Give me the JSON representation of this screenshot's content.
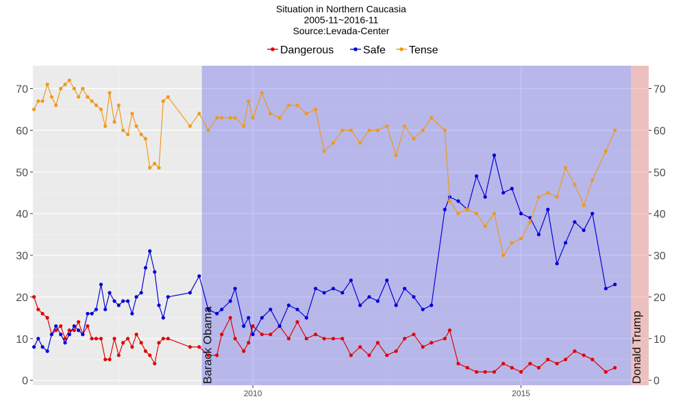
{
  "chart_data": {
    "type": "line",
    "title": "Situation in Northern Caucasia",
    "subtitle": "2005-11~2016-11",
    "source": "Source:Levada-Center",
    "xlabel": "",
    "ylabel": "",
    "legend_position": "top",
    "grid": true,
    "xlim": [
      2005.9,
      2017.38
    ],
    "ylim": [
      -1.2,
      75.5
    ],
    "x_ticks": [
      {
        "value": 2010,
        "label": "2010"
      },
      {
        "value": 2015,
        "label": "2015"
      }
    ],
    "y_ticks": [
      {
        "value": 0,
        "label": "0"
      },
      {
        "value": 10,
        "label": "10"
      },
      {
        "value": 20,
        "label": "20"
      },
      {
        "value": 30,
        "label": "30"
      },
      {
        "value": 40,
        "label": "40"
      },
      {
        "value": 50,
        "label": "50"
      },
      {
        "value": 60,
        "label": "60"
      },
      {
        "value": 70,
        "label": "70"
      }
    ],
    "annotations": [
      {
        "label": "Barack Obama",
        "x_start": 2009.05,
        "x_end": 2017.05,
        "color": "#0000e6"
      },
      {
        "label": "Donald Trump",
        "x_start": 2017.05,
        "x_end": 2017.58,
        "color": "#f08080"
      }
    ],
    "series": [
      {
        "name": "Dangerous",
        "color": "#e00000",
        "x": [
          2005.92,
          2006.0,
          2006.08,
          2006.17,
          2006.25,
          2006.33,
          2006.42,
          2006.5,
          2006.58,
          2006.67,
          2006.75,
          2006.83,
          2006.92,
          2007.0,
          2007.08,
          2007.17,
          2007.25,
          2007.33,
          2007.42,
          2007.5,
          2007.58,
          2007.67,
          2007.75,
          2007.83,
          2007.92,
          2008.0,
          2008.08,
          2008.17,
          2008.25,
          2008.33,
          2008.42,
          2008.83,
          2009.0,
          2009.17,
          2009.33,
          2009.42,
          2009.58,
          2009.67,
          2009.83,
          2009.92,
          2010.0,
          2010.17,
          2010.33,
          2010.5,
          2010.67,
          2010.83,
          2011.0,
          2011.17,
          2011.33,
          2011.5,
          2011.67,
          2011.83,
          2012.0,
          2012.17,
          2012.33,
          2012.5,
          2012.67,
          2012.83,
          2013.0,
          2013.17,
          2013.33,
          2013.58,
          2013.67,
          2013.83,
          2014.0,
          2014.17,
          2014.33,
          2014.5,
          2014.67,
          2014.83,
          2015.0,
          2015.17,
          2015.33,
          2015.5,
          2015.67,
          2015.83,
          2016.0,
          2016.17,
          2016.33,
          2016.58,
          2016.75
        ],
        "y": [
          20,
          17,
          16,
          15,
          11,
          12,
          13,
          10,
          12,
          12,
          14,
          11,
          13,
          10,
          10,
          10,
          5,
          5,
          10,
          6,
          9,
          10,
          8,
          11,
          9,
          7,
          6,
          4,
          9,
          10,
          10,
          8,
          8,
          6,
          6,
          11,
          15,
          10,
          7,
          9,
          13,
          11,
          11,
          13,
          10,
          14,
          10,
          11,
          10,
          10,
          10,
          6,
          8,
          6,
          9,
          6,
          7,
          10,
          11,
          8,
          9,
          10,
          12,
          4,
          3,
          2,
          2,
          2,
          4,
          3,
          2,
          4,
          3,
          5,
          4,
          5,
          7,
          6,
          5,
          2,
          3
        ]
      },
      {
        "name": "Safe",
        "color": "#0000d8",
        "x": [
          2005.92,
          2006.0,
          2006.08,
          2006.17,
          2006.25,
          2006.33,
          2006.42,
          2006.5,
          2006.58,
          2006.67,
          2006.75,
          2006.83,
          2006.92,
          2007.0,
          2007.08,
          2007.17,
          2007.25,
          2007.33,
          2007.42,
          2007.5,
          2007.58,
          2007.67,
          2007.75,
          2007.83,
          2007.92,
          2008.0,
          2008.08,
          2008.17,
          2008.25,
          2008.33,
          2008.42,
          2008.83,
          2009.0,
          2009.17,
          2009.33,
          2009.42,
          2009.58,
          2009.67,
          2009.83,
          2009.92,
          2010.0,
          2010.17,
          2010.33,
          2010.5,
          2010.67,
          2010.83,
          2011.0,
          2011.17,
          2011.33,
          2011.5,
          2011.67,
          2011.83,
          2012.0,
          2012.17,
          2012.33,
          2012.5,
          2012.67,
          2012.83,
          2013.0,
          2013.17,
          2013.33,
          2013.58,
          2013.67,
          2013.83,
          2014.0,
          2014.17,
          2014.33,
          2014.5,
          2014.67,
          2014.83,
          2015.0,
          2015.17,
          2015.33,
          2015.5,
          2015.67,
          2015.83,
          2016.0,
          2016.17,
          2016.33,
          2016.58,
          2016.75
        ],
        "y": [
          8,
          10,
          8,
          7,
          11,
          13,
          11,
          9,
          11,
          13,
          12,
          11,
          16,
          16,
          17,
          23,
          17,
          21,
          19,
          18,
          19,
          19,
          16,
          20,
          21,
          27,
          31,
          26,
          18,
          15,
          20,
          21,
          25,
          17,
          16,
          17,
          19,
          22,
          13,
          15,
          11,
          15,
          17,
          13,
          18,
          17,
          15,
          22,
          21,
          22,
          21,
          24,
          18,
          20,
          19,
          24,
          18,
          22,
          20,
          17,
          18,
          41,
          44,
          43,
          41,
          49,
          44,
          54,
          45,
          46,
          40,
          39,
          35,
          41,
          28,
          33,
          38,
          36,
          40,
          22,
          23
        ]
      },
      {
        "name": "Tense",
        "color": "#ef9a1a",
        "x": [
          2005.92,
          2006.0,
          2006.08,
          2006.17,
          2006.25,
          2006.33,
          2006.42,
          2006.5,
          2006.58,
          2006.67,
          2006.75,
          2006.83,
          2006.92,
          2007.0,
          2007.08,
          2007.17,
          2007.25,
          2007.33,
          2007.42,
          2007.5,
          2007.58,
          2007.67,
          2007.75,
          2007.83,
          2007.92,
          2008.0,
          2008.08,
          2008.17,
          2008.25,
          2008.33,
          2008.42,
          2008.83,
          2009.0,
          2009.17,
          2009.33,
          2009.42,
          2009.58,
          2009.67,
          2009.83,
          2009.92,
          2010.0,
          2010.17,
          2010.33,
          2010.5,
          2010.67,
          2010.83,
          2011.0,
          2011.17,
          2011.33,
          2011.5,
          2011.67,
          2011.83,
          2012.0,
          2012.17,
          2012.33,
          2012.5,
          2012.67,
          2012.83,
          2013.0,
          2013.17,
          2013.33,
          2013.58,
          2013.67,
          2013.83,
          2014.0,
          2014.17,
          2014.33,
          2014.5,
          2014.67,
          2014.83,
          2015.0,
          2015.17,
          2015.33,
          2015.5,
          2015.67,
          2015.83,
          2016.0,
          2016.17,
          2016.33,
          2016.58,
          2016.75
        ],
        "y": [
          65,
          67,
          67,
          71,
          68,
          66,
          70,
          71,
          72,
          70,
          68,
          70,
          68,
          67,
          66,
          65,
          61,
          69,
          62,
          66,
          60,
          59,
          64,
          61,
          59,
          58,
          51,
          52,
          51,
          67,
          68,
          61,
          64,
          60,
          63,
          63,
          63,
          63,
          61,
          67,
          63,
          69,
          64,
          63,
          66,
          66,
          64,
          65,
          55,
          57,
          60,
          60,
          57,
          60,
          60,
          61,
          54,
          61,
          58,
          60,
          63,
          60,
          43,
          40,
          41,
          40,
          37,
          40,
          30,
          33,
          34,
          38,
          44,
          45,
          44,
          51,
          47,
          42,
          48,
          55,
          60
        ]
      }
    ]
  }
}
